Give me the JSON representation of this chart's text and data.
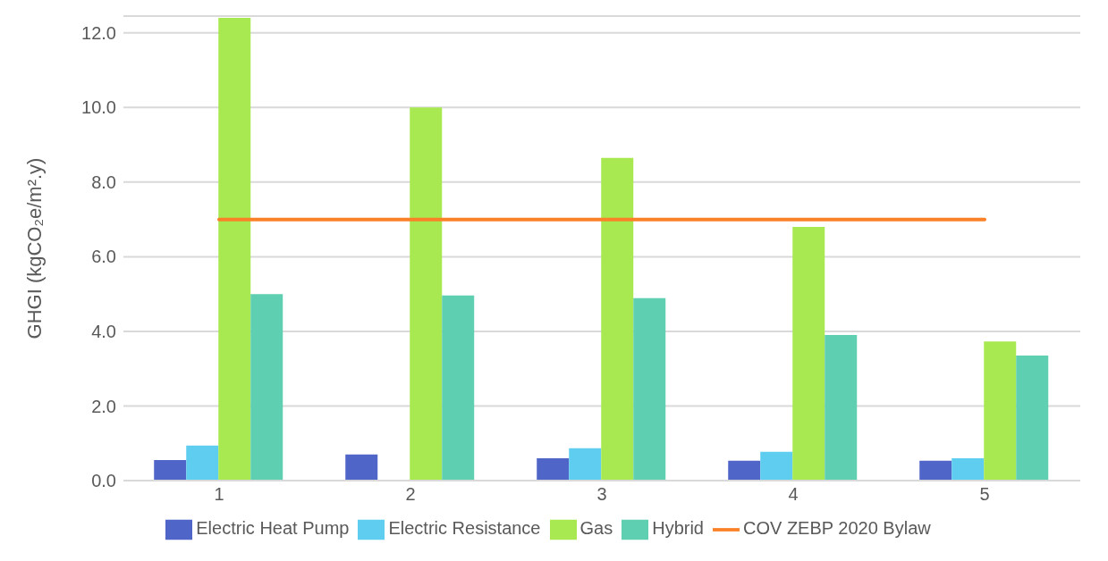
{
  "chart_data": {
    "type": "bar",
    "ylabel": "GHGI (kgCO₂e/m².y)",
    "categories": [
      "1",
      "2",
      "3",
      "4",
      "5"
    ],
    "series": [
      {
        "name": "Electric Heat Pump",
        "color": "#5065c8",
        "values": [
          0.55,
          0.7,
          0.6,
          0.53,
          0.53
        ]
      },
      {
        "name": "Electric Resistance",
        "color": "#5fcdf0",
        "values": [
          0.94,
          null,
          0.87,
          0.77,
          0.6
        ]
      },
      {
        "name": "Gas",
        "color": "#a8e952",
        "values": [
          12.4,
          10.0,
          8.65,
          6.8,
          3.73
        ]
      },
      {
        "name": "Hybrid",
        "color": "#5ecfb0",
        "values": [
          5.0,
          4.96,
          4.89,
          3.9,
          3.35
        ]
      },
      {
        "name": "COV ZEBP 2020 Bylaw",
        "type": "line",
        "color": "#fa8128",
        "values": [
          7.0,
          7.0,
          7.0,
          7.0,
          7.0
        ]
      }
    ],
    "ylim": [
      0,
      12.45
    ],
    "yticks": [
      {
        "value": 0,
        "label": "0.0"
      },
      {
        "value": 2,
        "label": "2.0"
      },
      {
        "value": 4,
        "label": "4.0"
      },
      {
        "value": 6,
        "label": "6.0"
      },
      {
        "value": 8,
        "label": "8.0"
      },
      {
        "value": 10,
        "label": "10.0"
      },
      {
        "value": 12,
        "label": "12.0"
      }
    ],
    "grid": "y",
    "legend": "bottom"
  }
}
